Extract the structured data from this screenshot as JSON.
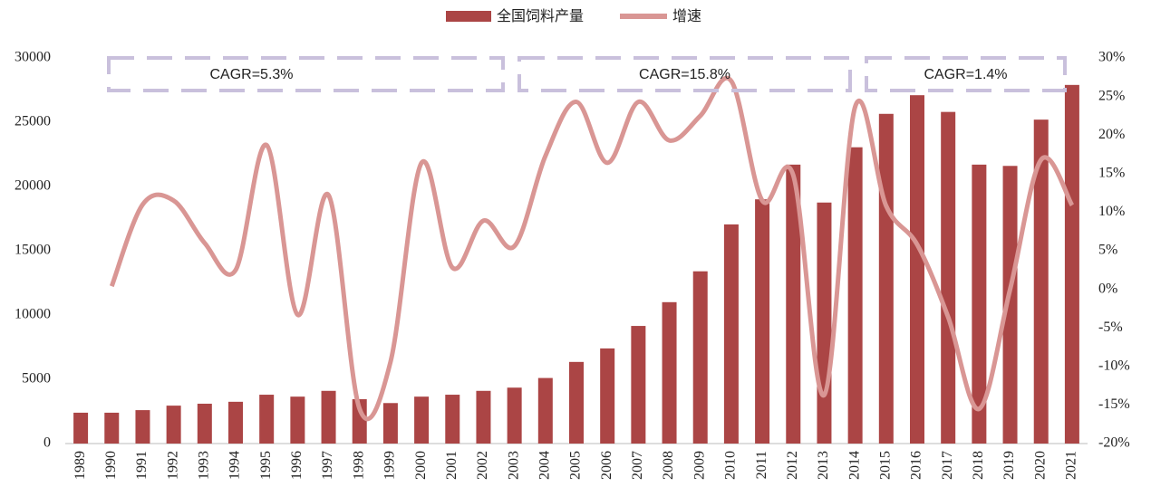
{
  "chart_data": {
    "type": "bar_line",
    "categories": [
      "1989",
      "1990",
      "1991",
      "1992",
      "1993",
      "1994",
      "1995",
      "1996",
      "1997",
      "1998",
      "1999",
      "2000",
      "2001",
      "2002",
      "2003",
      "2004",
      "2005",
      "2006",
      "2007",
      "2008",
      "2009",
      "2010",
      "2011",
      "2012",
      "2013",
      "2014",
      "2015",
      "2016",
      "2017",
      "2018",
      "2019",
      "2020",
      "2021"
    ],
    "series": [
      {
        "name": "全国饲料产量",
        "color": "#ab4545",
        "kind": "bar",
        "values": [
          2400,
          2400,
          2600,
          2950,
          3100,
          3250,
          3800,
          3650,
          4100,
          3450,
          3150,
          3650,
          3800,
          4100,
          4350,
          5100,
          6350,
          7400,
          9150,
          11000,
          13400,
          17050,
          19000,
          21700,
          18750,
          23050,
          25650,
          27100,
          25800,
          21700,
          21600,
          25200,
          27900
        ]
      },
      {
        "name": "增速",
        "color": "#d99694",
        "kind": "line",
        "axis": "y2",
        "values": [
          null,
          0.4,
          11,
          11.5,
          6,
          2.5,
          18.7,
          -3.3,
          12.2,
          -15.5,
          -9.4,
          16.4,
          2.8,
          8.9,
          5.6,
          17.3,
          24.3,
          16.4,
          24.3,
          19.3,
          22.5,
          27,
          11.5,
          14.8,
          -13.7,
          23.7,
          10.8,
          5.8,
          -3.6,
          -15.5,
          0,
          16.8,
          10.9
        ]
      }
    ],
    "ylim": [
      0,
      30000
    ],
    "yticks": [
      0,
      5000,
      10000,
      15000,
      20000,
      25000,
      30000
    ],
    "y2lim": [
      -20,
      30
    ],
    "y2ticks": [
      {
        "value": -20,
        "label": "-20%"
      },
      {
        "value": -15,
        "label": "-15%"
      },
      {
        "value": -10,
        "label": "-10%"
      },
      {
        "value": -5,
        "label": "-5%"
      },
      {
        "value": 0,
        "label": "0%"
      },
      {
        "value": 5,
        "label": "5%"
      },
      {
        "value": 10,
        "label": "10%"
      },
      {
        "value": 15,
        "label": "15%"
      },
      {
        "value": 20,
        "label": "20%"
      },
      {
        "value": 25,
        "label": "25%"
      },
      {
        "value": 30,
        "label": "30%"
      }
    ],
    "annotations": [
      "CAGR=5.3%",
      "CAGR=15.8%",
      "CAGR=1.4%"
    ],
    "legend": "top"
  }
}
